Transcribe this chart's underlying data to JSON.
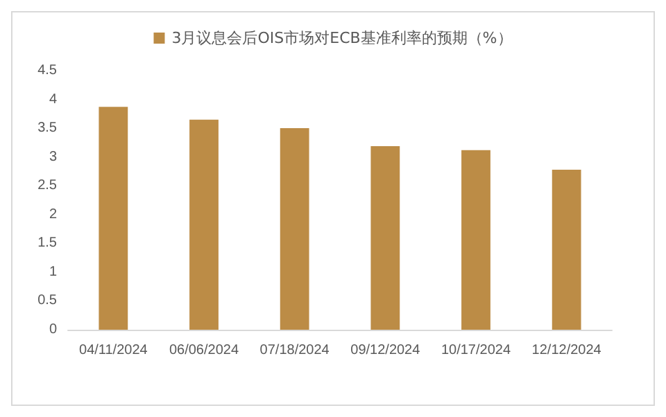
{
  "chart_data": {
    "type": "bar",
    "categories": [
      "04/11/2024",
      "06/06/2024",
      "07/18/2024",
      "09/12/2024",
      "10/17/2024",
      "12/12/2024"
    ],
    "series": [
      {
        "name": "3月议息会后OIS市场对ECB基准利率的预期（%）",
        "color": "#bc8c46",
        "values": [
          3.87,
          3.65,
          3.5,
          3.19,
          3.12,
          2.78
        ]
      }
    ],
    "ylim": [
      0,
      4.5
    ],
    "yticks": [
      0,
      0.5,
      1,
      1.5,
      2,
      2.5,
      3,
      3.5,
      4,
      4.5
    ],
    "grid": false,
    "legend": "top"
  }
}
